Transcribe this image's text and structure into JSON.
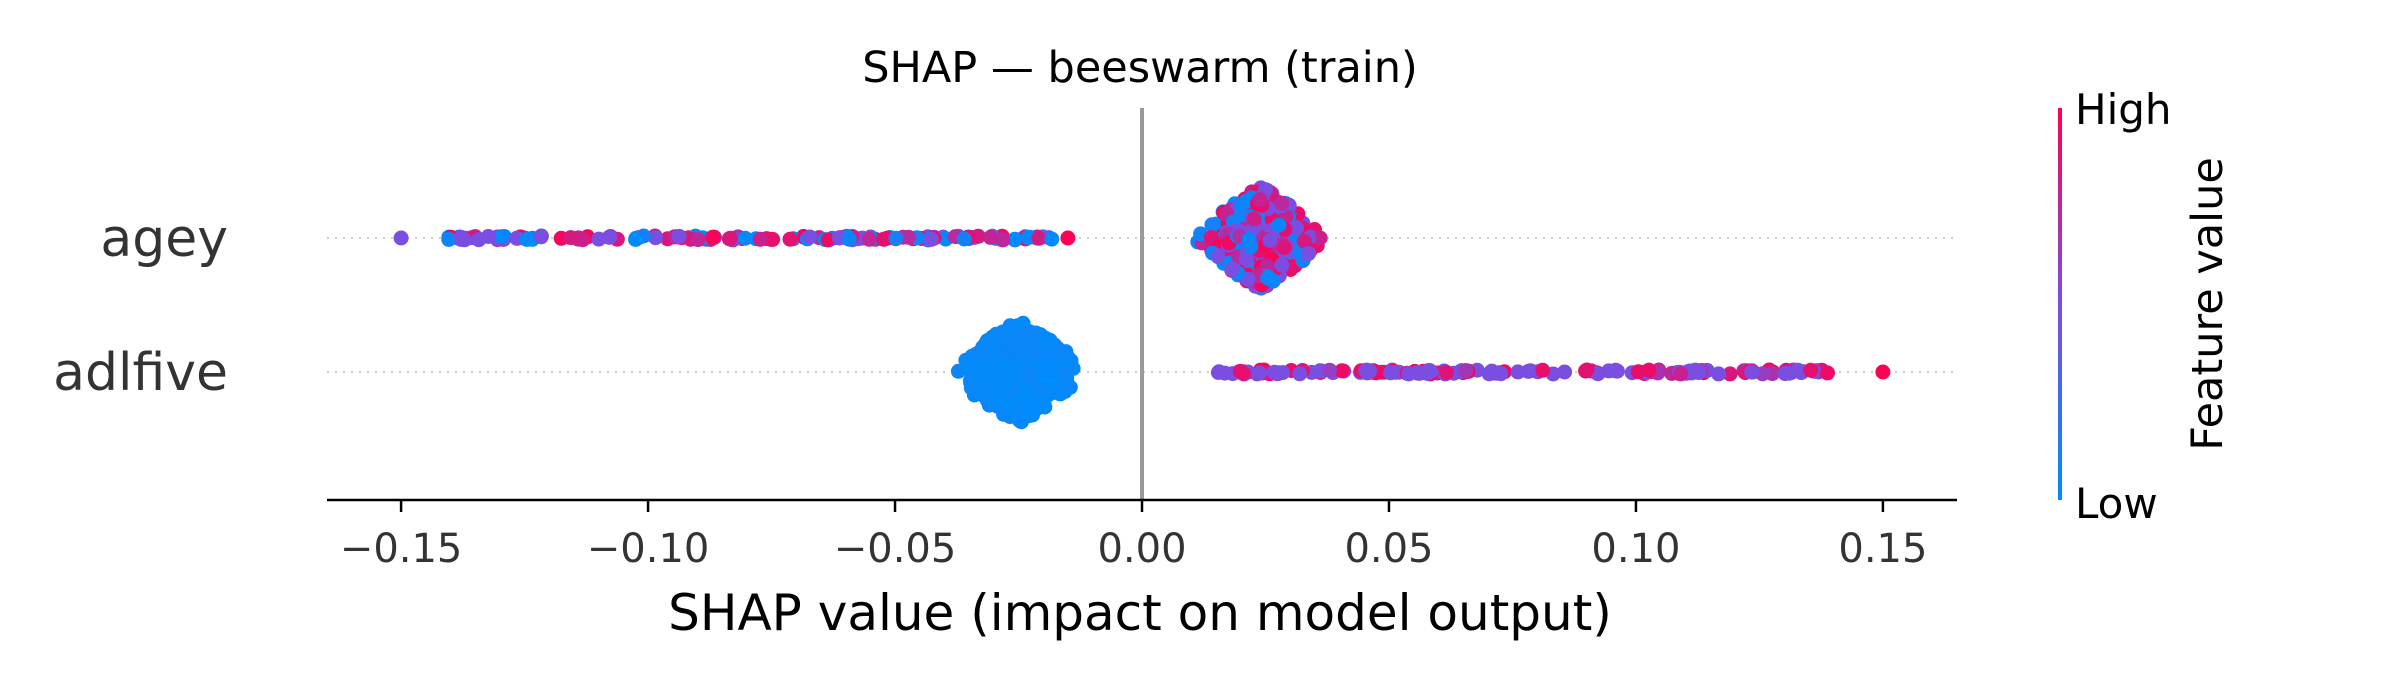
{
  "chart_data": {
    "type": "scatter",
    "subtype": "beeswarm",
    "title": "SHAP — beeswarm (train)",
    "xlabel": "SHAP value (impact on model output)",
    "ylabel": "",
    "xlim": [
      -0.165,
      0.165
    ],
    "xticks": [
      -0.15,
      -0.1,
      -0.05,
      0.0,
      0.05,
      0.1,
      0.15
    ],
    "xtick_labels": [
      "−0.15",
      "−0.10",
      "−0.05",
      "0.00",
      "0.05",
      "0.10",
      "0.15"
    ],
    "zero_line": 0.0,
    "grid": false,
    "colormap": {
      "low": "#008bfb",
      "mid": "#7b4ee2",
      "high": "#ff0052"
    },
    "colorbar": {
      "title": "Feature value",
      "high_label": "High",
      "low_label": "Low",
      "placement": "right"
    },
    "features": [
      {
        "name": "agey",
        "clusters": [
          {
            "x_min": -0.141,
            "x_max": -0.018,
            "center": -0.08,
            "spread": 0.004,
            "feature_value": "mixed"
          },
          {
            "x_min": 0.013,
            "x_max": 0.041,
            "center": 0.024,
            "spread": 0.23,
            "feature_value": "mixed"
          }
        ],
        "outliers": [
          {
            "x": -0.15,
            "feature_value": 0.5
          },
          {
            "x": -0.015,
            "feature_value": 1.0
          }
        ]
      },
      {
        "name": "adlfive",
        "clusters": [
          {
            "x_min": -0.041,
            "x_max": -0.012,
            "center": -0.025,
            "spread": 0.2,
            "feature_value": "low"
          },
          {
            "x_min": 0.015,
            "x_max": 0.141,
            "center": 0.07,
            "spread": 0.004,
            "feature_value": "mid-to-high"
          }
        ],
        "outliers": [
          {
            "x": 0.15,
            "feature_value": 1.0
          }
        ]
      }
    ]
  }
}
